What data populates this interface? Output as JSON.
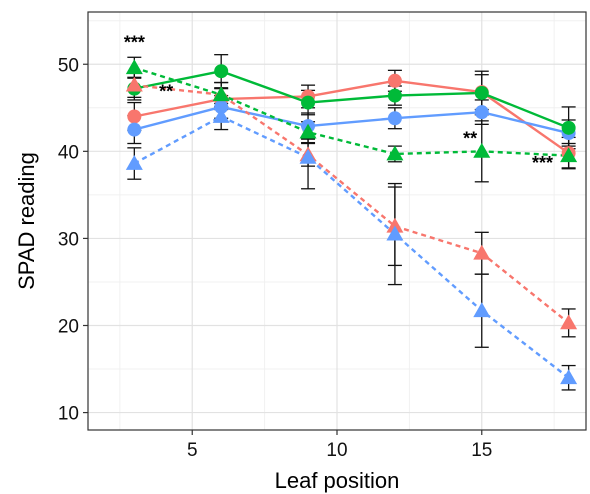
{
  "chart_data": {
    "type": "line",
    "title": "",
    "xlabel": "Leaf position",
    "ylabel": "SPAD reading",
    "xlim": [
      1.4,
      18.6
    ],
    "ylim": [
      8.0,
      56.0
    ],
    "x_ticks": [
      5,
      10,
      15
    ],
    "y_ticks": [
      10,
      20,
      30,
      40,
      50
    ],
    "grid": true,
    "x": [
      3,
      6,
      9,
      12,
      15,
      18
    ],
    "colors": {
      "red": "#F8766D",
      "green": "#00BA38",
      "blue": "#619CFF"
    },
    "series": [
      {
        "color": "#F8766D",
        "linestyle": "solid",
        "marker": "circle",
        "values": [
          44.0,
          46.0,
          46.3,
          48.1,
          46.8,
          39.8
        ],
        "errors": [
          1.6,
          1.2,
          1.3,
          1.2,
          2.0,
          1.8
        ]
      },
      {
        "color": "#619CFF",
        "linestyle": "solid",
        "marker": "circle",
        "values": [
          42.5,
          45.1,
          42.9,
          43.8,
          44.5,
          42.1
        ],
        "errors": [
          1.6,
          1.3,
          1.5,
          1.2,
          1.4,
          1.5
        ]
      },
      {
        "color": "#00BA38",
        "linestyle": "solid",
        "marker": "circle",
        "values": [
          47.2,
          49.2,
          45.6,
          46.4,
          46.7,
          42.7
        ],
        "errors": [
          1.3,
          1.9,
          1.4,
          1.1,
          2.5,
          2.4
        ]
      },
      {
        "color": "#F8766D",
        "linestyle": "dashed",
        "marker": "triangle",
        "values": [
          47.6,
          46.5,
          39.6,
          31.4,
          28.3,
          20.3
        ],
        "errors": [
          1.4,
          1.4,
          1.3,
          4.5,
          2.4,
          1.6
        ]
      },
      {
        "color": "#619CFF",
        "linestyle": "dashed",
        "marker": "triangle",
        "values": [
          38.6,
          44.0,
          39.3,
          30.5,
          21.7,
          14.0
        ],
        "errors": [
          1.8,
          1.5,
          3.6,
          5.8,
          4.2,
          1.4
        ]
      },
      {
        "color": "#00BA38",
        "linestyle": "dashed",
        "marker": "triangle",
        "values": [
          49.6,
          46.5,
          42.2,
          39.7,
          40.0,
          39.5
        ],
        "errors": [
          1.2,
          1.4,
          1.2,
          0.9,
          3.5,
          1.4
        ]
      }
    ],
    "annotations": [
      {
        "text": "***",
        "x": 3.0,
        "y": 51.8
      },
      {
        "text": "**",
        "x": 4.1,
        "y": 46.2
      },
      {
        "text": "**",
        "x": 14.6,
        "y": 40.8
      },
      {
        "text": "***",
        "x": 17.1,
        "y": 38.0
      }
    ]
  }
}
